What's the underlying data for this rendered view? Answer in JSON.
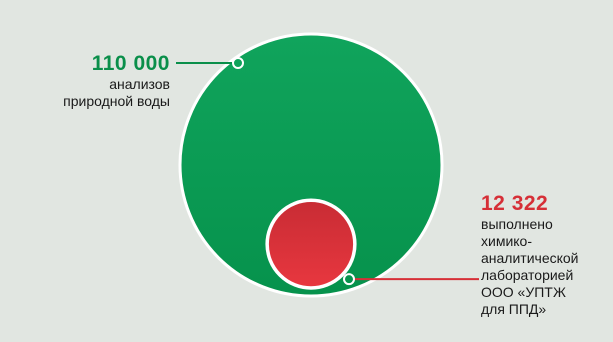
{
  "colors": {
    "background": "#e1e6e1",
    "big_circle": "#06964f",
    "big_circle_light": "#18a860",
    "small_circle": "#e0333c",
    "small_circle_dark": "#c62a33",
    "outline": "#ffffff",
    "total_number": "#0a8f4a",
    "lab_number": "#d62f37"
  },
  "chart_data": {
    "type": "area",
    "series": [
      {
        "value": 110000,
        "number_label": "110 000",
        "description": "анализов\nприродной воды",
        "color": "#06964f"
      },
      {
        "value": 12322,
        "number_label": "12 322",
        "description": "выполнено\nхимико-\nаналитической\nлабораторией\nООО «УПТЖ\nдля ППД»",
        "color": "#e0333c"
      }
    ]
  }
}
